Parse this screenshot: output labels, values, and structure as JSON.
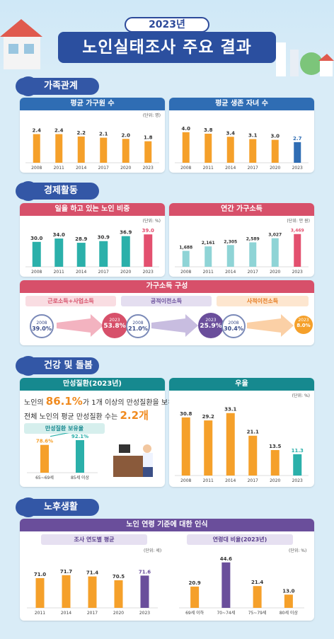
{
  "header": {
    "year": "2023년",
    "title": "노인실태조사 주요 결과"
  },
  "sections": {
    "family": "가족관계",
    "economy": "경제활동",
    "health": "건강 및 돌봄",
    "retire": "노후생활"
  },
  "colors": {
    "orange": "#f5a02a",
    "teal": "#2bb0aa",
    "pink": "#e3506f",
    "purple": "#6a4e9b",
    "blue": "#2f6db4",
    "lightteal": "#8fd4d6"
  },
  "panels": {
    "household": {
      "title": "평균 가구원 수",
      "unit": "(단위: 명)"
    },
    "children": {
      "title": "평균 생존 자녀 수"
    },
    "working": {
      "title": "일을 하고 있는 노인 비중",
      "unit": "(단위: %)"
    },
    "income": {
      "title": "연간 가구소득",
      "unit": "(단위: 만 원)"
    },
    "composition": {
      "title": "가구소득 구성",
      "earned": {
        "label": "근로소득+사업소득",
        "y2008": "2008",
        "v2008": "39.0%",
        "y2023": "2023",
        "v2023": "53.8%"
      },
      "public": {
        "label": "공적이전소득",
        "y2008": "2008",
        "v2008": "21.0%",
        "y2023": "2023",
        "v2023": "25.9%"
      },
      "private": {
        "label": "사적이전소득",
        "y2008": "2008",
        "v2008": "30.4%",
        "y2023": "2023",
        "v2023": "8.0%"
      }
    },
    "chronic": {
      "title": "만성질환(2023년)",
      "line1_a": "노인의 ",
      "line1_hl": "86.1%",
      "line1_b": "가 1개 이상의 만성질환을 보유",
      "line2_a": "전체 노인의 평균 만성질환 수는 ",
      "line2_hl": "2.2개",
      "subtitle": "만성질환 보유율"
    },
    "depression": {
      "title": "우울",
      "unit": "(단위: %)"
    },
    "agecriteria": {
      "title": "노인 연령 기준에 대한 인식",
      "sub1": "조사 연도별 평균",
      "unit1": "(단위: 세)",
      "sub2": "연령대 비율(2023년)",
      "unit2": "(단위: %)"
    }
  },
  "chart_data": [
    {
      "type": "bar",
      "title": "평균 가구원 수",
      "categories": [
        "2008",
        "2011",
        "2014",
        "2017",
        "2020",
        "2023"
      ],
      "values": [
        2.4,
        2.4,
        2.2,
        2.1,
        2.0,
        1.8
      ],
      "labels": [
        "2.4",
        "2.4",
        "2.2",
        "2.1",
        "2.0",
        "1.8"
      ]
    },
    {
      "type": "bar",
      "title": "평균 생존 자녀 수",
      "categories": [
        "2008",
        "2011",
        "2014",
        "2017",
        "2020",
        "2023"
      ],
      "values": [
        4.0,
        3.8,
        3.4,
        3.1,
        3.0,
        2.7
      ],
      "labels": [
        "4.0",
        "3.8",
        "3.4",
        "3.1",
        "3.0",
        "2.7"
      ]
    },
    {
      "type": "bar",
      "title": "일을 하고 있는 노인 비중",
      "categories": [
        "2008",
        "2011",
        "2014",
        "2017",
        "2020",
        "2023"
      ],
      "values": [
        30.0,
        34.0,
        28.9,
        30.9,
        36.9,
        39.0
      ],
      "labels": [
        "30.0",
        "34.0",
        "28.9",
        "30.9",
        "36.9",
        "39.0"
      ]
    },
    {
      "type": "bar",
      "title": "연간 가구소득",
      "categories": [
        "2008",
        "2011",
        "2014",
        "2017",
        "2020",
        "2023"
      ],
      "values": [
        1688,
        2161,
        2305,
        2589,
        3027,
        3469
      ],
      "labels": [
        "1,688",
        "2,161",
        "2,305",
        "2,589",
        "3,027",
        "3,469"
      ]
    },
    {
      "type": "bar",
      "title": "만성질환 보유율",
      "categories": [
        "65~69세",
        "85세 이상"
      ],
      "values": [
        78.6,
        92.1
      ],
      "labels": [
        "78.6%",
        "92.1%"
      ]
    },
    {
      "type": "bar",
      "title": "우울",
      "categories": [
        "2008",
        "2011",
        "2014",
        "2017",
        "2020",
        "2023"
      ],
      "values": [
        30.8,
        29.2,
        33.1,
        21.1,
        13.5,
        11.3
      ],
      "labels": [
        "30.8",
        "29.2",
        "33.1",
        "21.1",
        "13.5",
        "11.3"
      ]
    },
    {
      "type": "bar",
      "title": "조사 연도별 평균",
      "categories": [
        "2011",
        "2014",
        "2017",
        "2020",
        "2023"
      ],
      "values": [
        71.0,
        71.7,
        71.4,
        70.5,
        71.6
      ],
      "labels": [
        "71.0",
        "71.7",
        "71.4",
        "70.5",
        "71.6"
      ]
    },
    {
      "type": "bar",
      "title": "연령대 비율(2023년)",
      "categories": [
        "69세 이하",
        "70~74세",
        "75~79세",
        "80세 이상"
      ],
      "values": [
        20.9,
        44.6,
        21.4,
        13.0
      ],
      "labels": [
        "20.9",
        "44.6",
        "21.4",
        "13.0"
      ]
    }
  ]
}
